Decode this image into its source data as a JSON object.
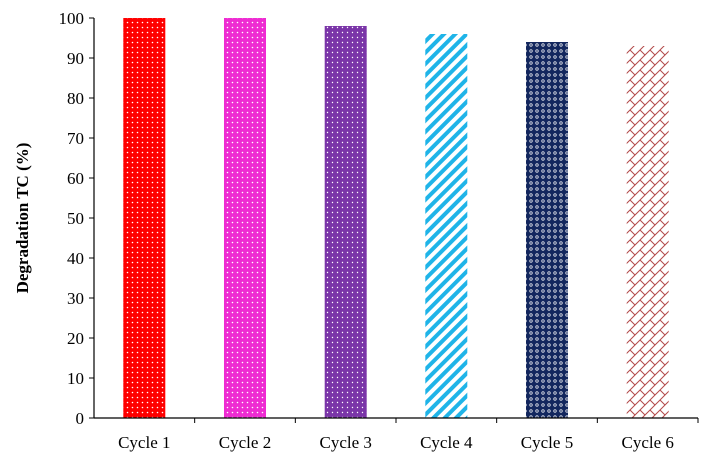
{
  "chart_data": {
    "type": "bar",
    "title": "",
    "xlabel": "",
    "ylabel": "Degradation TC (%)",
    "ylim": [
      0,
      100
    ],
    "yticks": [
      0,
      10,
      20,
      30,
      40,
      50,
      60,
      70,
      80,
      90,
      100
    ],
    "grid": false,
    "categories": [
      "Cycle 1",
      "Cycle 2",
      "Cycle 3",
      "Cycle 4",
      "Cycle 5",
      "Cycle 6"
    ],
    "values": [
      100,
      100,
      98,
      96,
      94,
      93
    ],
    "bar_colors": [
      "#ff0000",
      "#ee2bd2",
      "#7a35a8",
      "#1fb4e8",
      "#13275e",
      "#b34a4a"
    ],
    "bar_patterns": [
      "dots-white-on-red",
      "dots-white-on-magenta",
      "dots-white-on-purple",
      "diagonal-stripes",
      "circles-on-navy",
      "brick-crosshatch"
    ]
  }
}
